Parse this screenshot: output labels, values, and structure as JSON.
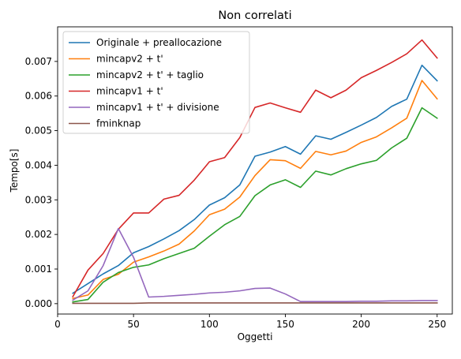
{
  "chart_data": {
    "type": "line",
    "title": "Non correlati",
    "xlabel": "Oggetti",
    "ylabel": "Tempo[s]",
    "xlim": [
      0,
      260
    ],
    "ylim": [
      -0.0003,
      0.008
    ],
    "xticks": [
      0,
      50,
      100,
      150,
      200,
      250
    ],
    "yticks": [
      0.0,
      0.001,
      0.002,
      0.003,
      0.004,
      0.005,
      0.006,
      0.007
    ],
    "ytick_labels": [
      "0.000",
      "0.001",
      "0.002",
      "0.003",
      "0.004",
      "0.005",
      "0.006",
      "0.007"
    ],
    "grid": false,
    "legend_position": "top-left",
    "x": [
      10,
      20,
      30,
      40,
      50,
      60,
      70,
      80,
      90,
      100,
      110,
      120,
      130,
      140,
      150,
      160,
      170,
      180,
      190,
      200,
      210,
      220,
      230,
      240,
      250
    ],
    "series": [
      {
        "name": "Originale + preallocazione",
        "color": "#1f77b4",
        "values": [
          0.0003,
          0.00058,
          0.00086,
          0.0011,
          0.00147,
          0.00165,
          0.00187,
          0.00211,
          0.00243,
          0.00285,
          0.00306,
          0.00343,
          0.00426,
          0.00438,
          0.00454,
          0.00432,
          0.00485,
          0.00475,
          0.00495,
          0.00516,
          0.00538,
          0.0057,
          0.00591,
          0.00689,
          0.00644
        ]
      },
      {
        "name": "mincapv2 + t'",
        "color": "#ff7f0e",
        "values": [
          0.00015,
          0.00025,
          0.0007,
          0.00085,
          0.0012,
          0.00135,
          0.00152,
          0.00172,
          0.0021,
          0.00257,
          0.00273,
          0.00308,
          0.0037,
          0.00416,
          0.00413,
          0.00391,
          0.0044,
          0.0043,
          0.00441,
          0.00466,
          0.00482,
          0.00508,
          0.00536,
          0.00645,
          0.00592
        ]
      },
      {
        "name": "mincapv2 + t' + taglio",
        "color": "#2ca02c",
        "values": [
          5e-05,
          0.00012,
          0.00062,
          0.0009,
          0.00105,
          0.00112,
          0.0013,
          0.00145,
          0.0016,
          0.00195,
          0.00228,
          0.00252,
          0.00312,
          0.00343,
          0.00358,
          0.00336,
          0.00383,
          0.00372,
          0.0039,
          0.00404,
          0.00414,
          0.0045,
          0.00478,
          0.00566,
          0.00536
        ]
      },
      {
        "name": "mincapv1 + t'",
        "color": "#d62728",
        "values": [
          0.0002,
          0.00097,
          0.00145,
          0.00215,
          0.00262,
          0.00262,
          0.00302,
          0.00313,
          0.00357,
          0.0041,
          0.00422,
          0.0048,
          0.00567,
          0.0058,
          0.00566,
          0.00553,
          0.00617,
          0.00595,
          0.00617,
          0.00653,
          0.00674,
          0.00697,
          0.00722,
          0.00762,
          0.0071
        ]
      },
      {
        "name": "mincapv1 + t' + divisione",
        "color": "#9467bd",
        "values": [
          0.0001,
          0.00037,
          0.0011,
          0.00217,
          0.00134,
          0.00019,
          0.00021,
          0.00024,
          0.00027,
          0.00031,
          0.00033,
          0.00037,
          0.00044,
          0.00045,
          0.00028,
          6e-05,
          6e-05,
          6e-05,
          6e-05,
          7e-05,
          7e-05,
          8e-05,
          8e-05,
          9e-05,
          9e-05
        ]
      },
      {
        "name": "fminknap",
        "color": "#8c564b",
        "values": [
          1e-05,
          1e-05,
          1e-05,
          1e-05,
          1e-05,
          2e-05,
          2e-05,
          2e-05,
          2e-05,
          2e-05,
          2e-05,
          2e-05,
          2e-05,
          2e-05,
          2e-05,
          2e-05,
          2e-05,
          2e-05,
          2e-05,
          2e-05,
          2e-05,
          2e-05,
          2e-05,
          2e-05,
          2e-05
        ]
      }
    ]
  }
}
